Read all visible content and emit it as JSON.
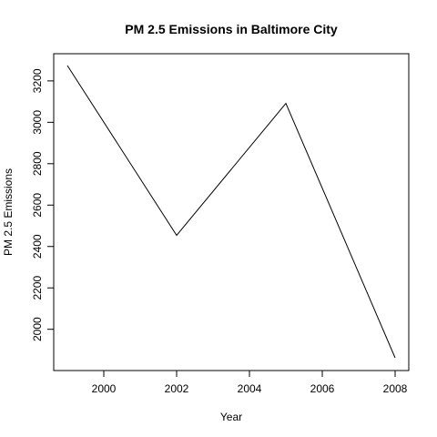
{
  "chart_data": {
    "type": "line",
    "title": "PM 2.5 Emissions in Baltimore City",
    "xlabel": "Year",
    "ylabel": "PM 2.5 Emissions",
    "x": [
      1999,
      2002,
      2005,
      2008
    ],
    "series": [
      {
        "values": [
          3274.18,
          2453.92,
          3091.35,
          1862.28
        ]
      }
    ],
    "xlim": [
      1999,
      2008
    ],
    "ylim": [
      1862.28,
      3274.18
    ],
    "xticks": [
      2000,
      2002,
      2004,
      2006,
      2008
    ],
    "yticks": [
      2000,
      2200,
      2400,
      2600,
      2800,
      3000,
      3200
    ],
    "grid": false,
    "line_color": "#000000"
  }
}
